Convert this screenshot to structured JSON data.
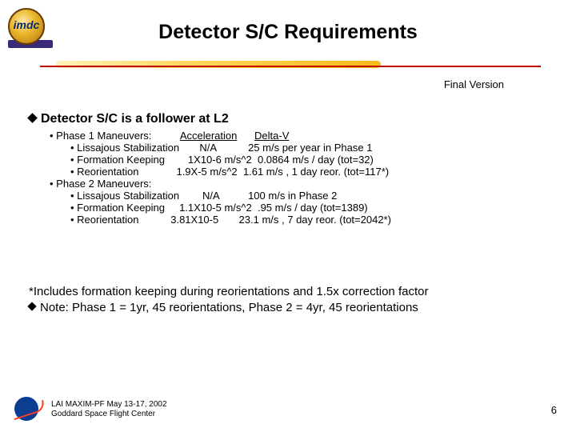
{
  "title": "Detector S/C Requirements",
  "final_version": "Final Version",
  "heading": "Detector S/C is a follower at L2",
  "phase1": {
    "label": "Phase 1 Maneuvers:",
    "accel_header": "Acceleration",
    "dv_header": "Delta-V",
    "rows": [
      {
        "name": "Lissajous Stabilization",
        "accel": "N/A",
        "dv": "25 m/s per year in Phase 1"
      },
      {
        "name": "Formation Keeping",
        "accel": "1X10-6 m/s^2",
        "dv": "0.0864 m/s / day (tot=32)"
      },
      {
        "name": "Reorientation",
        "accel": "1.9X-5 m/s^2",
        "dv": "1.61 m/s , 1 day reor. (tot=117*)"
      }
    ]
  },
  "phase2": {
    "label": "Phase 2 Maneuvers:",
    "rows": [
      {
        "name": "Lissajous Stabilization",
        "accel": "N/A",
        "dv": "100 m/s in Phase 2"
      },
      {
        "name": "Formation Keeping",
        "accel": "1.1X10-5 m/s^2",
        "dv": ".95 m/s / day (tot=1389)"
      },
      {
        "name": "Reorientation",
        "accel": "3.81X10-5",
        "dv": "23.1 m/s , 7 day reor. (tot=2042*)"
      }
    ]
  },
  "note1": "*Includes formation keeping during reorientations and 1.5x correction factor",
  "note2": "Note: Phase 1 = 1yr, 45 reorientations, Phase 2 = 4yr, 45 reorientations",
  "footer_line1": "LAI MAXIM-PF May 13-17, 2002",
  "footer_line2": "Goddard Space Flight Center",
  "page_number": "6",
  "colors": {
    "rule_red": "#c00000",
    "rule_yellow": "#ffd34e",
    "text": "#000000",
    "bg": "#ffffff"
  }
}
